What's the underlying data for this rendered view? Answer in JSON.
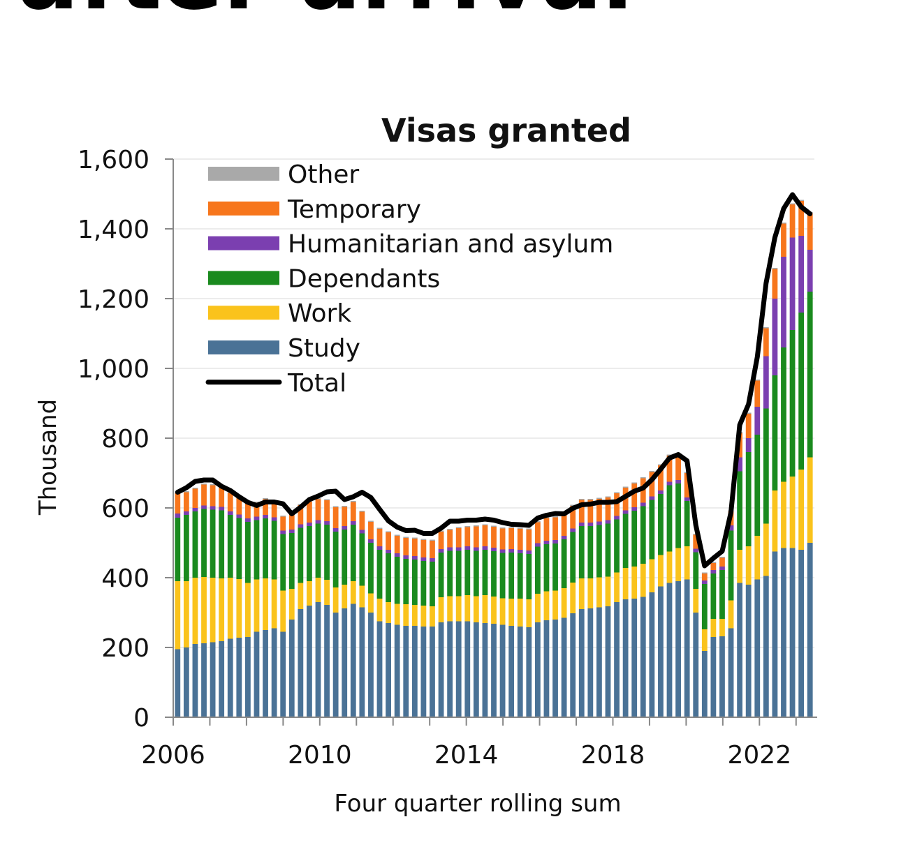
{
  "header": {
    "cropped_text": "after arrival"
  },
  "chart_data": {
    "type": "bar",
    "title": "Visas granted",
    "xlabel": "Four quarter rolling sum",
    "ylabel": "Thousand",
    "ylim": [
      0,
      1600
    ],
    "yticks": [
      0,
      200,
      400,
      600,
      800,
      1000,
      1200,
      1400,
      1600
    ],
    "yticklabels": [
      "0",
      "200",
      "400",
      "600",
      "800",
      "1,000",
      "1,200",
      "1,400",
      "1,600"
    ],
    "xticks": [
      2006,
      2010,
      2014,
      2018,
      2022
    ],
    "xticklabels": [
      "2006",
      "2010",
      "2014",
      "2018",
      "2022"
    ],
    "x_start": 2006,
    "x_end": 2023.5,
    "periods_per_year": 4,
    "legend_position": "top-left",
    "grid": true,
    "stack_order": [
      "Study",
      "Work",
      "Dependants",
      "Humanitarian and asylum",
      "Temporary",
      "Other"
    ],
    "series": [
      {
        "name": "Study",
        "color": "#4a7296",
        "values": [
          195,
          200,
          210,
          212,
          215,
          218,
          225,
          228,
          230,
          245,
          250,
          255,
          245,
          280,
          310,
          320,
          330,
          322,
          300,
          312,
          325,
          315,
          300,
          275,
          270,
          265,
          262,
          262,
          260,
          260,
          272,
          275,
          275,
          275,
          272,
          270,
          268,
          265,
          262,
          260,
          258,
          272,
          278,
          280,
          285,
          298,
          310,
          312,
          315,
          318,
          330,
          338,
          340,
          345,
          358,
          375,
          385,
          390,
          395,
          300,
          190,
          230,
          232,
          255,
          385,
          380,
          395,
          405,
          475,
          485,
          485,
          480,
          500
        ]
      },
      {
        "name": "Work",
        "color": "#fac31c",
        "values": [
          195,
          190,
          190,
          190,
          185,
          180,
          175,
          168,
          155,
          150,
          148,
          140,
          118,
          88,
          75,
          70,
          70,
          72,
          72,
          68,
          65,
          62,
          55,
          65,
          60,
          60,
          62,
          60,
          60,
          58,
          72,
          72,
          72,
          75,
          75,
          80,
          78,
          76,
          78,
          80,
          80,
          82,
          83,
          83,
          85,
          88,
          88,
          86,
          86,
          85,
          85,
          90,
          92,
          95,
          95,
          90,
          90,
          95,
          95,
          68,
          62,
          52,
          50,
          80,
          95,
          110,
          125,
          150,
          175,
          190,
          205,
          230,
          245
        ]
      },
      {
        "name": "Dependants",
        "color": "#1a8a1e",
        "values": [
          182,
          190,
          190,
          195,
          195,
          195,
          180,
          175,
          175,
          170,
          172,
          168,
          162,
          160,
          158,
          158,
          155,
          158,
          160,
          158,
          162,
          150,
          145,
          140,
          140,
          135,
          130,
          130,
          128,
          128,
          128,
          130,
          130,
          130,
          130,
          130,
          130,
          130,
          132,
          130,
          130,
          135,
          135,
          135,
          140,
          145,
          150,
          150,
          150,
          152,
          152,
          155,
          160,
          165,
          170,
          175,
          190,
          185,
          130,
          105,
          130,
          130,
          140,
          200,
          225,
          270,
          290,
          330,
          330,
          385,
          420,
          450,
          475
        ]
      },
      {
        "name": "Humanitarian and asylum",
        "color": "#7b3fb0",
        "values": [
          12,
          10,
          10,
          10,
          10,
          10,
          10,
          10,
          10,
          10,
          10,
          10,
          10,
          10,
          10,
          10,
          10,
          10,
          10,
          10,
          10,
          10,
          10,
          10,
          10,
          10,
          10,
          10,
          10,
          10,
          10,
          10,
          10,
          10,
          10,
          10,
          10,
          10,
          10,
          10,
          10,
          10,
          10,
          10,
          10,
          10,
          10,
          10,
          10,
          10,
          10,
          10,
          10,
          10,
          10,
          10,
          10,
          10,
          10,
          10,
          10,
          10,
          10,
          15,
          40,
          40,
          80,
          150,
          220,
          260,
          265,
          220,
          120
        ]
      },
      {
        "name": "Temporary",
        "color": "#f7761c",
        "values": [
          58,
          55,
          55,
          60,
          60,
          55,
          53,
          50,
          45,
          40,
          45,
          45,
          40,
          45,
          55,
          60,
          60,
          60,
          60,
          55,
          55,
          52,
          50,
          50,
          50,
          50,
          50,
          50,
          50,
          50,
          50,
          50,
          55,
          55,
          60,
          60,
          60,
          60,
          60,
          60,
          60,
          60,
          65,
          65,
          65,
          65,
          65,
          65,
          65,
          65,
          65,
          65,
          68,
          70,
          70,
          72,
          75,
          70,
          70,
          40,
          20,
          20,
          25,
          40,
          70,
          70,
          75,
          80,
          85,
          95,
          95,
          100,
          105
        ]
      },
      {
        "name": "Other",
        "color": "#a9a9a9",
        "values": [
          3,
          3,
          3,
          3,
          3,
          3,
          3,
          3,
          3,
          3,
          3,
          3,
          3,
          3,
          3,
          3,
          3,
          3,
          3,
          3,
          3,
          3,
          3,
          3,
          3,
          3,
          3,
          3,
          3,
          3,
          3,
          3,
          3,
          3,
          3,
          3,
          3,
          3,
          3,
          3,
          3,
          3,
          3,
          3,
          3,
          3,
          3,
          3,
          3,
          3,
          3,
          3,
          3,
          3,
          3,
          3,
          3,
          3,
          3,
          3,
          3,
          3,
          3,
          3,
          3,
          3,
          3,
          3,
          3,
          3,
          3,
          3,
          3
        ]
      },
      {
        "name": "Total",
        "color": "#000000",
        "type": "line",
        "values": [
          645,
          658,
          676,
          680,
          680,
          662,
          650,
          632,
          616,
          607,
          617,
          617,
          612,
          583,
          602,
          624,
          634,
          646,
          648,
          624,
          632,
          645,
          630,
          596,
          563,
          545,
          535,
          536,
          527,
          527,
          542,
          562,
          562,
          565,
          565,
          568,
          565,
          558,
          553,
          552,
          550,
          571,
          579,
          584,
          583,
          599,
          609,
          611,
          616,
          616,
          618,
          633,
          648,
          657,
          681,
          711,
          743,
          753,
          735,
          551,
          434,
          456,
          476,
          587,
          838,
          897,
          1033,
          1244,
          1375,
          1458,
          1498,
          1463,
          1443
        ]
      }
    ]
  }
}
